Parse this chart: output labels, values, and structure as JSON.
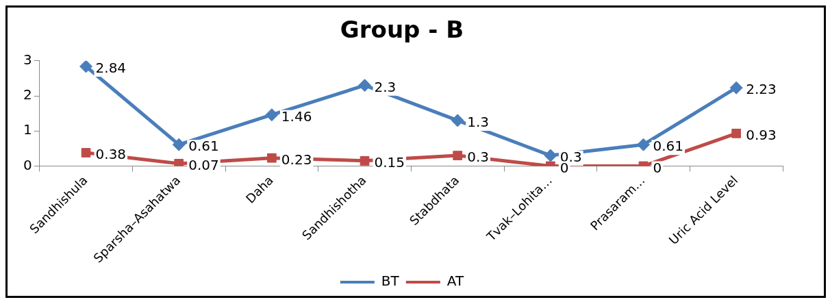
{
  "chart_data": {
    "type": "line",
    "title": "Group - B",
    "categories": [
      "Sandhishula",
      "Sparsha–Asahatwa",
      "Daha",
      "Sandhishotha",
      "Stabdhata",
      "Tvak–Lohita…",
      "Prasaram…",
      "Uric Acid Level"
    ],
    "series": [
      {
        "name": "BT",
        "color": "#4a7ebb",
        "marker": "diamond",
        "values": [
          2.84,
          0.61,
          1.46,
          2.3,
          1.3,
          0.3,
          0.61,
          2.23
        ]
      },
      {
        "name": "AT",
        "color": "#be4b48",
        "marker": "square",
        "values": [
          0.38,
          0.07,
          0.23,
          0.15,
          0.3,
          0,
          0,
          0.93
        ]
      }
    ],
    "ylim": [
      0,
      3
    ],
    "yticks": [
      0,
      1,
      2,
      3
    ],
    "grid": false,
    "legend": "bottom",
    "data_labels": true
  }
}
